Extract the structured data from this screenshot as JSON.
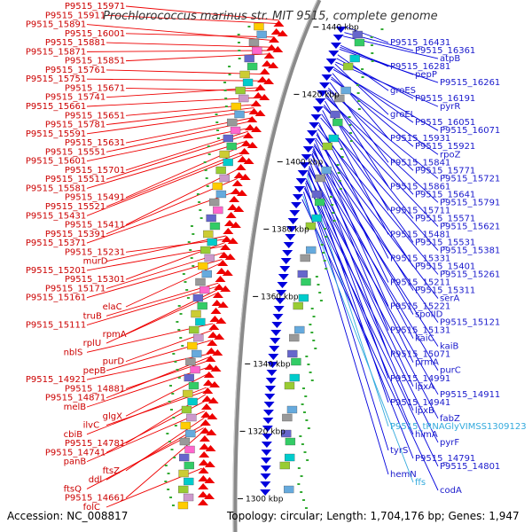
{
  "title": "Prochlorococcus marinus str. MIT 9515, complete genome",
  "accession": "Accession: NC_008817",
  "summary": "Topology: circular; Length: 1,704,176 bp; Genes: 1,947",
  "colors": {
    "forward": "#ee0000",
    "reverse": "#0000dd",
    "rna": "#33aadd",
    "backbone": "#888888"
  },
  "ticks": [
    {
      "label": "1440 kbp",
      "pos": 1440
    },
    {
      "label": "1420 kbp",
      "pos": 1420
    },
    {
      "label": "1400 kbp",
      "pos": 1400
    },
    {
      "label": "1380 kbp",
      "pos": 1380
    },
    {
      "label": "1360 kbp",
      "pos": 1360
    },
    {
      "label": "1340 kbp",
      "pos": 1340
    },
    {
      "label": "1320 kbp",
      "pos": 1320
    },
    {
      "label": "1300 kbp",
      "pos": 1300
    }
  ],
  "left_labels": [
    {
      "text": "P9515_15971",
      "pos": 1442
    },
    {
      "text": "P9515_15911",
      "pos": 1441
    },
    {
      "text": "P9515_15891",
      "pos": 1436
    },
    {
      "text": "P9515_16001",
      "pos": 1437
    },
    {
      "text": "P9515_15881",
      "pos": 1434
    },
    {
      "text": "P9515_15871",
      "pos": 1433
    },
    {
      "text": "P9515_15851",
      "pos": 1432
    },
    {
      "text": "P9515_15761",
      "pos": 1426
    },
    {
      "text": "P9515_15751",
      "pos": 1424
    },
    {
      "text": "P9515_15671",
      "pos": 1421
    },
    {
      "text": "P9515_15741",
      "pos": 1422
    },
    {
      "text": "P9515_15661",
      "pos": 1419
    },
    {
      "text": "P9515_15651",
      "pos": 1417
    },
    {
      "text": "P9515_15781",
      "pos": 1416
    },
    {
      "text": "P9515_15591",
      "pos": 1415
    },
    {
      "text": "P9515_15631",
      "pos": 1413
    },
    {
      "text": "P9515_15551",
      "pos": 1412
    },
    {
      "text": "P9515_15601",
      "pos": 1410
    },
    {
      "text": "P9515_15701",
      "pos": 1409
    },
    {
      "text": "P9515_15511",
      "pos": 1408
    },
    {
      "text": "P9515_15581",
      "pos": 1406
    },
    {
      "text": "P9515_15491",
      "pos": 1405
    },
    {
      "text": "P9515_15521",
      "pos": 1403
    },
    {
      "text": "P9515_15431",
      "pos": 1402
    },
    {
      "text": "P9515_15411",
      "pos": 1398
    },
    {
      "text": "P9515_15391",
      "pos": 1395
    },
    {
      "text": "P9515_15371",
      "pos": 1391
    },
    {
      "text": "P9515_15231",
      "pos": 1377
    },
    {
      "text": "murD",
      "pos": 1378
    },
    {
      "text": "P9515_15201",
      "pos": 1375
    },
    {
      "text": "P9515_15301",
      "pos": 1376
    },
    {
      "text": "P9515_15171",
      "pos": 1373
    },
    {
      "text": "P9515_15161",
      "pos": 1371
    },
    {
      "text": "elaC",
      "pos": 1370
    },
    {
      "text": "truB",
      "pos": 1364
    },
    {
      "text": "P9515_15111",
      "pos": 1363
    },
    {
      "text": "rpmA",
      "pos": 1362
    },
    {
      "text": "rplU",
      "pos": 1361
    },
    {
      "text": "nblS",
      "pos": 1352
    },
    {
      "text": "purD",
      "pos": 1350
    },
    {
      "text": "pepB",
      "pos": 1347
    },
    {
      "text": "P9515_14921",
      "pos": 1343
    },
    {
      "text": "P9515_14881",
      "pos": 1341
    },
    {
      "text": "P9515_14871",
      "pos": 1342
    },
    {
      "text": "melB",
      "pos": 1339
    },
    {
      "text": "glgX",
      "pos": 1337
    },
    {
      "text": "ilvC",
      "pos": 1332
    },
    {
      "text": "cbiB",
      "pos": 1333
    },
    {
      "text": "P9515_14781",
      "pos": 1331
    },
    {
      "text": "P9515_14741",
      "pos": 1329
    },
    {
      "text": "panB",
      "pos": 1326
    },
    {
      "text": "ftsZ",
      "pos": 1324
    },
    {
      "text": "ddl",
      "pos": 1322
    },
    {
      "text": "ftsQ",
      "pos": 1321
    },
    {
      "text": "P9515_14661",
      "pos": 1320
    },
    {
      "text": "folC",
      "pos": 1309
    }
  ],
  "right_labels": [
    {
      "text": "P9515_16431",
      "pos": 1444
    },
    {
      "text": "P9515_16361",
      "pos": 1441
    },
    {
      "text": "atpB",
      "pos": 1439
    },
    {
      "text": "P9515_16281",
      "pos": 1434
    },
    {
      "text": "pepP",
      "pos": 1433
    },
    {
      "text": "P9515_16261",
      "pos": 1432
    },
    {
      "text": "groES",
      "pos": 1429
    },
    {
      "text": "P9515_16191",
      "pos": 1427
    },
    {
      "text": "pyrR",
      "pos": 1425
    },
    {
      "text": "groEL",
      "pos": 1424
    },
    {
      "text": "P9515_16051",
      "pos": 1422
    },
    {
      "text": "P9515_16071",
      "pos": 1421
    },
    {
      "text": "P9515_15931",
      "pos": 1419
    },
    {
      "text": "P9515_15921",
      "pos": 1417
    },
    {
      "text": "rpoZ",
      "pos": 1416
    },
    {
      "text": "P9515_15841",
      "pos": 1414
    },
    {
      "text": "P9515_15771",
      "pos": 1411
    },
    {
      "text": "P9515_15721",
      "pos": 1410
    },
    {
      "text": "P9515_15861",
      "pos": 1409
    },
    {
      "text": "P9515_15641",
      "pos": 1407
    },
    {
      "text": "P9515_15791",
      "pos": 1406
    },
    {
      "text": "P9515_15711",
      "pos": 1404
    },
    {
      "text": "P9515_15571",
      "pos": 1402
    },
    {
      "text": "P9515_15621",
      "pos": 1401
    },
    {
      "text": "P9515_15481",
      "pos": 1399
    },
    {
      "text": "P9515_15531",
      "pos": 1397
    },
    {
      "text": "P9515_15381",
      "pos": 1395
    },
    {
      "text": "P9515_15331",
      "pos": 1392
    },
    {
      "text": "P9515_15401",
      "pos": 1391
    },
    {
      "text": "P9515_15261",
      "pos": 1389
    },
    {
      "text": "P9515_15211",
      "pos": 1387
    },
    {
      "text": "P9515_15311",
      "pos": 1386
    },
    {
      "text": "serA",
      "pos": 1384
    },
    {
      "text": "P9515_15221",
      "pos": 1383
    },
    {
      "text": "spoIID",
      "pos": 1381
    },
    {
      "text": "P9515_15121",
      "pos": 1380
    },
    {
      "text": "P9515_15131",
      "pos": 1379
    },
    {
      "text": "kaiC",
      "pos": 1378
    },
    {
      "text": "kaiB",
      "pos": 1377
    },
    {
      "text": "P9515_15071",
      "pos": 1376
    },
    {
      "text": "prmA",
      "pos": 1375
    },
    {
      "text": "purC",
      "pos": 1373
    },
    {
      "text": "P9515_14991",
      "pos": 1371
    },
    {
      "text": "lpxA",
      "pos": 1369
    },
    {
      "text": "P9515_14911",
      "pos": 1368
    },
    {
      "text": "P9515_14941",
      "pos": 1367
    },
    {
      "text": "lpxB",
      "pos": 1366
    },
    {
      "text": "fabZ",
      "pos": 1365
    },
    {
      "text": "P9515_tRNAGlyVIMSS1309123",
      "pos": 1364,
      "rna": true
    },
    {
      "text": "himA",
      "pos": 1362
    },
    {
      "text": "pyrF",
      "pos": 1361
    },
    {
      "text": "tyrS",
      "pos": 1360
    },
    {
      "text": "P9515_14791",
      "pos": 1358
    },
    {
      "text": "P9515_14801",
      "pos": 1357
    },
    {
      "text": "hemN",
      "pos": 1355
    },
    {
      "text": "ffs",
      "pos": 1353,
      "rna": true
    },
    {
      "text": "codA",
      "pos": 1351
    }
  ]
}
